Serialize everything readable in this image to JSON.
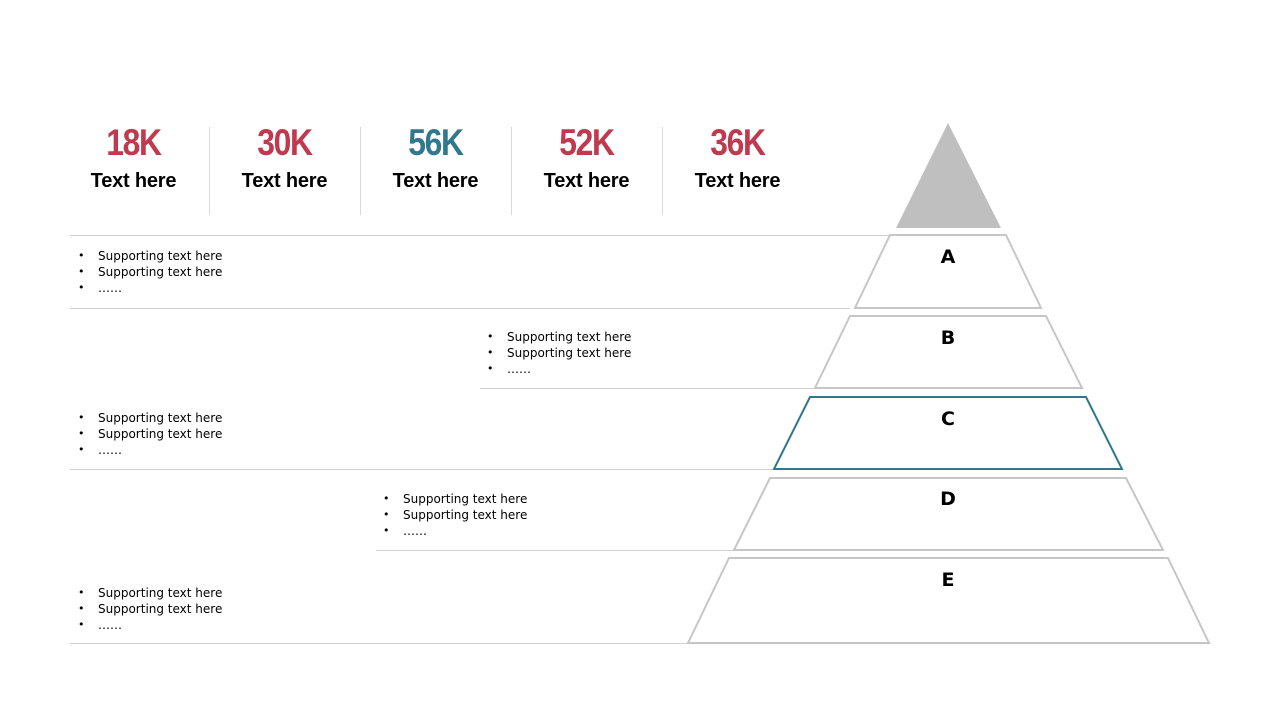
{
  "colors": {
    "red": "#c0394e",
    "teal": "#31788f",
    "tier_border": "#c6c6c6",
    "tier_highlight": "#31788f",
    "tip_fill": "#bfbfbf",
    "divider": "#d0d0d0"
  },
  "stats": [
    {
      "value": "18K",
      "label": "Text here",
      "color": "#c0394e"
    },
    {
      "value": "30K",
      "label": "Text here",
      "color": "#c0394e"
    },
    {
      "value": "56K",
      "label": "Text here",
      "color": "#31788f"
    },
    {
      "value": "52K",
      "label": "Text here",
      "color": "#c0394e"
    },
    {
      "value": "36K",
      "label": "Text here",
      "color": "#c0394e"
    }
  ],
  "tiers": [
    {
      "letter": "A",
      "bullets": [
        "Supporting text here",
        "Supporting text here",
        "……"
      ]
    },
    {
      "letter": "B",
      "bullets": [
        "Supporting text here",
        "Supporting text here",
        "……"
      ]
    },
    {
      "letter": "C",
      "bullets": [
        "Supporting text here",
        "Supporting text here",
        "……"
      ],
      "highlighted": true
    },
    {
      "letter": "D",
      "bullets": [
        "Supporting text here",
        "Supporting text here",
        "……"
      ]
    },
    {
      "letter": "E",
      "bullets": [
        "Supporting text here",
        "Supporting text here",
        "……"
      ]
    }
  ]
}
